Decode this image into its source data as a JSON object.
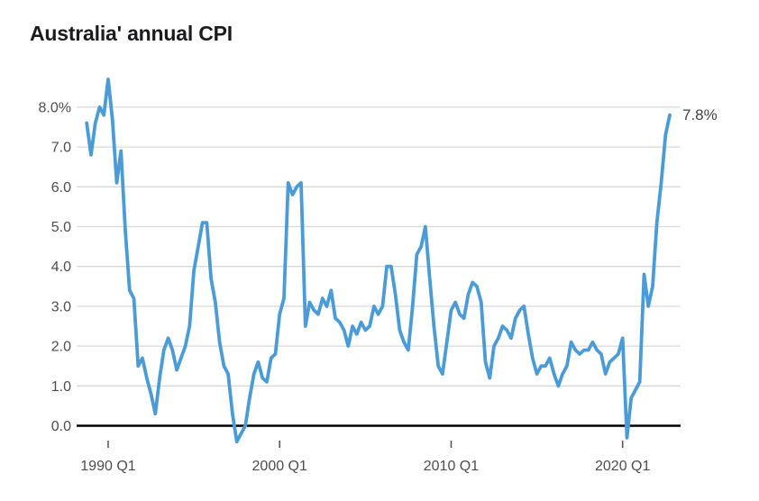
{
  "title": "Australia' annual CPI",
  "annotation": {
    "end_label": "7.8%"
  },
  "colors": {
    "line": "#4b9cd6",
    "grid": "#d8d8d8",
    "zero_axis": "#000000",
    "tick": "#58585a",
    "axis_label": "#4d4d4f",
    "title_text": "#1b1b1e",
    "background": "#ffffff"
  },
  "chart_data": {
    "type": "line",
    "title": "Australia' annual CPI",
    "unit": "%",
    "frequency": "quarterly",
    "x_start": "1988 Q4",
    "x_end": "2022 Q4",
    "xlabel": "",
    "ylabel": "",
    "ylim": [
      -0.45,
      8.85
    ],
    "grid": true,
    "legend_position": "none",
    "y_ticks": [
      {
        "value": 0,
        "label": "0.0"
      },
      {
        "value": 1,
        "label": "1.0"
      },
      {
        "value": 2,
        "label": "2.0"
      },
      {
        "value": 3,
        "label": "3.0"
      },
      {
        "value": 4,
        "label": "4.0"
      },
      {
        "value": 5,
        "label": "5.0"
      },
      {
        "value": 6,
        "label": "6.0"
      },
      {
        "value": 7,
        "label": "7.0"
      },
      {
        "value": 8,
        "label": "8.0%"
      }
    ],
    "x_ticks": [
      {
        "label": "1990 Q1",
        "quarter_index": 5
      },
      {
        "label": "2000 Q1",
        "quarter_index": 45
      },
      {
        "label": "2010 Q1",
        "quarter_index": 85
      },
      {
        "label": "2020 Q1",
        "quarter_index": 125
      }
    ],
    "values": [
      7.6,
      6.8,
      7.6,
      8.0,
      7.8,
      8.7,
      7.7,
      6.1,
      6.9,
      4.9,
      3.4,
      3.2,
      1.5,
      1.7,
      1.2,
      0.8,
      0.3,
      1.2,
      1.9,
      2.2,
      1.9,
      1.4,
      1.7,
      2.0,
      2.5,
      3.9,
      4.5,
      5.1,
      5.1,
      3.7,
      3.1,
      2.1,
      1.5,
      1.3,
      0.3,
      -0.4,
      -0.2,
      0.0,
      0.7,
      1.3,
      1.6,
      1.2,
      1.1,
      1.7,
      1.8,
      2.8,
      3.2,
      6.1,
      5.8,
      6.0,
      6.1,
      2.5,
      3.1,
      2.9,
      2.8,
      3.2,
      3.0,
      3.4,
      2.7,
      2.6,
      2.4,
      2.0,
      2.5,
      2.3,
      2.6,
      2.4,
      2.5,
      3.0,
      2.8,
      3.0,
      4.0,
      4.0,
      3.3,
      2.4,
      2.1,
      1.9,
      3.0,
      4.3,
      4.5,
      5.0,
      3.7,
      2.5,
      1.5,
      1.3,
      2.1,
      2.9,
      3.1,
      2.8,
      2.7,
      3.3,
      3.6,
      3.5,
      3.1,
      1.6,
      1.2,
      2.0,
      2.2,
      2.5,
      2.4,
      2.2,
      2.7,
      2.9,
      3.0,
      2.3,
      1.7,
      1.3,
      1.5,
      1.5,
      1.7,
      1.3,
      1.0,
      1.3,
      1.5,
      2.1,
      1.9,
      1.8,
      1.9,
      1.9,
      2.1,
      1.9,
      1.8,
      1.3,
      1.6,
      1.7,
      1.8,
      2.2,
      -0.3,
      0.7,
      0.9,
      1.1,
      3.8,
      3.0,
      3.5,
      5.1,
      6.1,
      7.3,
      7.8
    ],
    "annotations": [
      {
        "text": "7.8%",
        "attached_to": "last_point"
      }
    ]
  }
}
